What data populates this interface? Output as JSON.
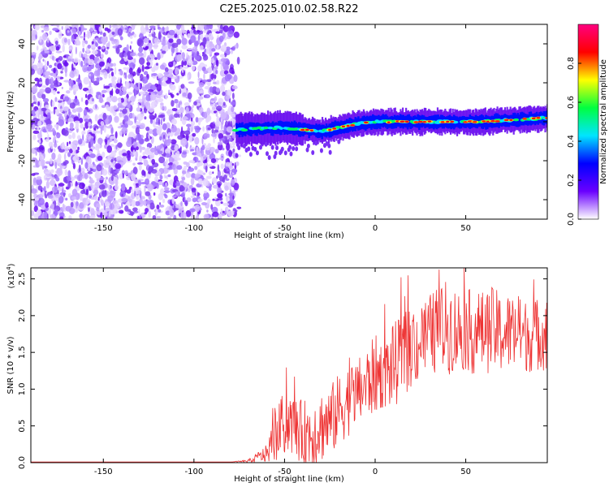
{
  "title": "C2E5.2025.010.02.58.R22",
  "spectrogram": {
    "xlabel": "Height of straight line (km)",
    "ylabel": "Frequency (Hz)",
    "xlim": [
      -190,
      95
    ],
    "ylim": [
      -50,
      50
    ],
    "xticks": [
      -150,
      -100,
      -50,
      0,
      50
    ],
    "yticks": [
      -40,
      -20,
      0,
      20,
      40
    ],
    "noise_region": [
      -190,
      -77
    ],
    "signal_band_center": [
      [
        -77,
        -4
      ],
      [
        -50,
        -3
      ],
      [
        -30,
        -5
      ],
      [
        -10,
        -1
      ],
      [
        0,
        0
      ],
      [
        30,
        0
      ],
      [
        60,
        0
      ],
      [
        95,
        2
      ]
    ],
    "colorbar": {
      "label": "Normalized spectral amplitude",
      "range": [
        0.0,
        1.0
      ],
      "ticks": [
        0.0,
        0.2,
        0.4,
        0.6,
        0.8
      ],
      "colors": [
        "#ffffff",
        "#6a00ff",
        "#0000ff",
        "#00e5ff",
        "#00ff40",
        "#ffff00",
        "#ff0000",
        "#ff0080"
      ]
    }
  },
  "chart_data": {
    "type": "line",
    "title": "C2E5.2025.010.02.58.R22",
    "xlabel": "Height of straight line (km)",
    "ylabel": "SNR (10 * v/v)",
    "y_scale_label": "(x10",
    "y_scale_exp": "4",
    "y_scale_close": ")",
    "xlim": [
      -190,
      95
    ],
    "ylim": [
      0.0,
      2.65
    ],
    "xticks": [
      -150,
      -100,
      -50,
      0,
      50
    ],
    "yticks": [
      0.0,
      0.5,
      1.0,
      1.5,
      2.0,
      2.5
    ],
    "ytick_labels": [
      "0.0",
      "0.5",
      "1.0",
      "1.5",
      "2.0",
      "2.5"
    ],
    "line_color": "#ee3333",
    "series": [
      {
        "name": "SNR",
        "x": [
          -190,
          -80,
          -70,
          -60,
          -55,
          -50,
          -45,
          -40,
          -35,
          -30,
          -25,
          -20,
          -15,
          -10,
          -5,
          0,
          5,
          10,
          15,
          20,
          25,
          30,
          35,
          40,
          45,
          50,
          55,
          60,
          65,
          70,
          75,
          80,
          85,
          90,
          95
        ],
        "y": [
          0.01,
          0.01,
          0.02,
          0.12,
          0.35,
          0.55,
          0.5,
          0.4,
          0.4,
          0.5,
          0.55,
          0.72,
          0.85,
          0.95,
          1.05,
          1.2,
          1.2,
          1.3,
          1.45,
          1.55,
          1.65,
          1.75,
          1.8,
          1.85,
          1.8,
          1.8,
          1.78,
          1.78,
          1.8,
          1.75,
          1.78,
          1.75,
          1.72,
          1.75,
          1.8
        ],
        "spread": [
          0.0,
          0.0,
          0.02,
          0.12,
          0.35,
          0.45,
          0.4,
          0.45,
          0.5,
          0.5,
          0.5,
          0.5,
          0.5,
          0.45,
          0.5,
          0.55,
          0.45,
          0.6,
          0.55,
          0.55,
          0.55,
          0.55,
          0.6,
          0.65,
          0.6,
          0.55,
          0.6,
          0.55,
          0.6,
          0.55,
          0.55,
          0.5,
          0.5,
          0.5,
          0.55
        ]
      }
    ]
  }
}
